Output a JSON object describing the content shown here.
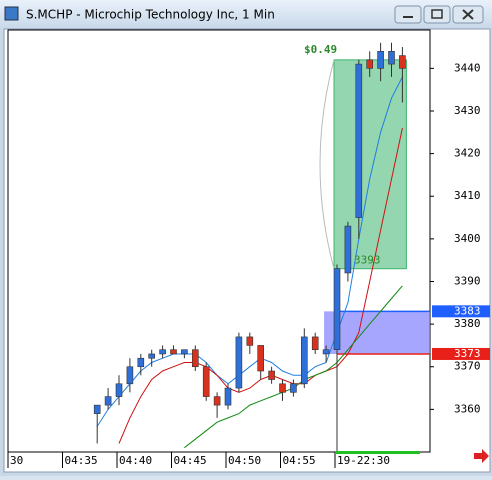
{
  "window": {
    "title": "S.MCHP - Microchip Technology Inc, 1 Min"
  },
  "chart_data": {
    "type": "candlestick",
    "categories": [
      "30",
      null,
      null,
      null,
      null,
      "04:35",
      null,
      null,
      null,
      null,
      "04:40",
      null,
      null,
      null,
      null,
      "04:45",
      null,
      null,
      null,
      null,
      "04:50",
      null,
      null,
      null,
      null,
      "04:55",
      null,
      null,
      null,
      null,
      "19-22:30",
      null,
      null,
      null,
      null,
      null,
      null
    ],
    "open": [
      null,
      null,
      null,
      null,
      null,
      null,
      null,
      null,
      3359,
      3361,
      3363,
      3366,
      3370,
      3372,
      3373,
      3374,
      3373,
      3374,
      3370,
      3363,
      3361,
      3365,
      3377,
      3375,
      3369,
      3366,
      3364,
      3366,
      3377,
      3373,
      3374,
      3392,
      3405,
      3442,
      3440,
      3441,
      3443
    ],
    "high": [
      null,
      null,
      null,
      null,
      null,
      null,
      null,
      null,
      3361,
      3365,
      3368,
      3372,
      3373,
      3374,
      3375,
      3375,
      3374,
      3375,
      3371,
      3364,
      3366,
      3378,
      3378,
      3375,
      3370,
      3367,
      3367,
      3379,
      3378,
      3375,
      3394,
      3404,
      3442,
      3444,
      3446,
      3446,
      3445
    ],
    "low": [
      null,
      null,
      null,
      null,
      null,
      null,
      null,
      null,
      3352,
      3360,
      3361,
      3364,
      3368,
      3370,
      3372,
      3373,
      3372,
      3369,
      3362,
      3358,
      3360,
      3364,
      3373,
      3367,
      3366,
      3362,
      3363,
      3365,
      3373,
      3371,
      3345,
      3390,
      3400,
      3438,
      3437,
      3438,
      3432
    ],
    "close": [
      null,
      null,
      null,
      null,
      null,
      null,
      null,
      null,
      3361,
      3363,
      3366,
      3370,
      3372,
      3373,
      3374,
      3373,
      3374,
      3370,
      3363,
      3361,
      3365,
      3377,
      3375,
      3369,
      3367,
      3364,
      3366,
      3377,
      3374,
      3374,
      3393,
      3403,
      3441,
      3440,
      3444,
      3444,
      3440
    ],
    "up_color": "#2f6fd8",
    "down_color": "#d8321f",
    "indicators": [
      {
        "color": "#1e7fe0",
        "values": [
          null,
          null,
          null,
          null,
          null,
          null,
          null,
          null,
          3356,
          3360,
          3363,
          3366,
          3369,
          3371,
          3372,
          3373,
          3373,
          3373,
          3371,
          3368,
          3366,
          3368,
          3370,
          3372,
          3371,
          3369,
          3368,
          3368,
          3370,
          3371,
          3378,
          3385,
          3400,
          3414,
          3425,
          3433,
          3438
        ]
      },
      {
        "color": "#d01010",
        "values": [
          null,
          null,
          null,
          null,
          null,
          null,
          null,
          null,
          null,
          null,
          3352,
          3358,
          3363,
          3367,
          3369,
          3370,
          3371,
          3371,
          3370,
          3368,
          3365,
          3364,
          3365,
          3367,
          3368,
          3367,
          3366,
          3366,
          3368,
          3369,
          3370,
          3373,
          3378,
          3390,
          3402,
          3414,
          3426
        ]
      },
      {
        "color": "#108a10",
        "values": [
          null,
          null,
          null,
          null,
          null,
          null,
          null,
          null,
          null,
          null,
          null,
          null,
          null,
          null,
          null,
          null,
          3351,
          3353,
          3355,
          3357,
          3358,
          3359,
          3361,
          3362,
          3363,
          3364,
          3365,
          3367,
          3368,
          3369,
          3371,
          3374,
          3377,
          3380,
          3383,
          3386,
          3389
        ]
      }
    ],
    "range_box": {
      "low": 3393,
      "high": 3442,
      "label": "$0.49",
      "color": "#3cb46e"
    },
    "price_tags": [
      {
        "value": 3383,
        "color": "#1f5fff"
      },
      {
        "value": 3373,
        "color": "#e8201a"
      }
    ],
    "ylim": [
      3350,
      3449
    ],
    "yticks": [
      3360,
      3370,
      3380,
      3390,
      3400,
      3410,
      3420,
      3430,
      3440
    ]
  }
}
